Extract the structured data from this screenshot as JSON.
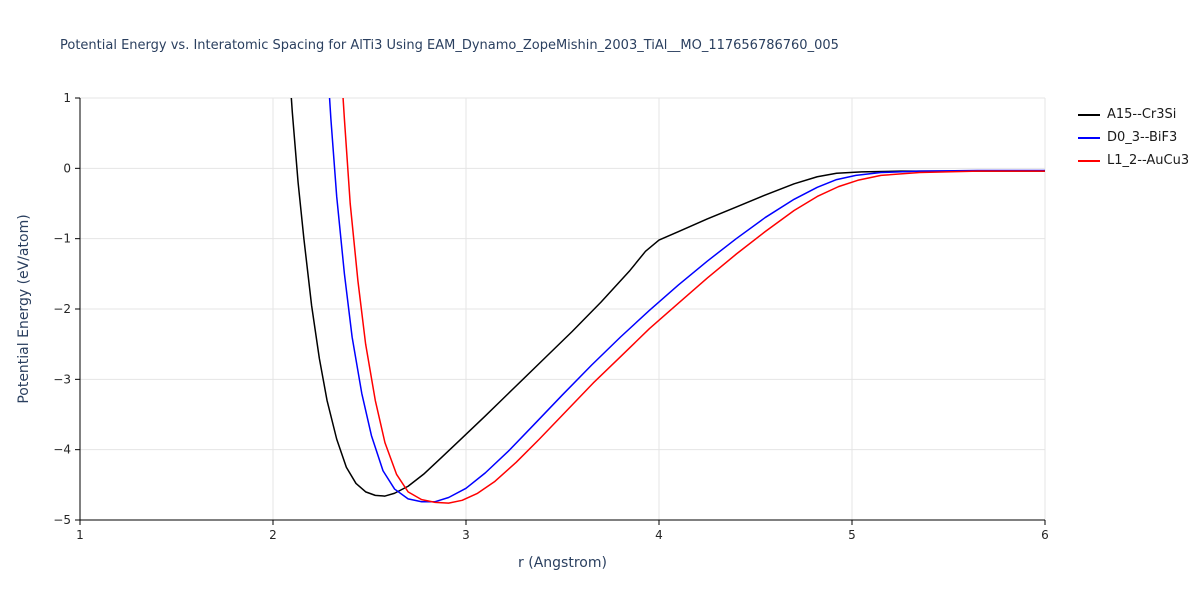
{
  "chart_data": {
    "type": "line",
    "title": "Potential Energy vs. Interatomic Spacing for AlTi3 Using EAM_Dynamo_ZopeMishin_2003_TiAl__MO_117656786760_005",
    "xlabel": "r (Angstrom)",
    "ylabel": "Potential Energy (eV/atom)",
    "xlim": [
      1,
      6
    ],
    "ylim": [
      -5,
      1
    ],
    "xticks": [
      1,
      2,
      3,
      4,
      5,
      6
    ],
    "yticks": [
      -5,
      -4,
      -3,
      -2,
      -1,
      0,
      1
    ],
    "grid": true,
    "legend_position": "top-right-outside",
    "colors": {
      "grid": "#e5e5e5",
      "axis": "#000000",
      "tick_label": "#262626",
      "title": "#2a3f5f"
    },
    "series": [
      {
        "name": "A15--Cr3Si",
        "color": "#000000",
        "points": [
          [
            2.07,
            2.0
          ],
          [
            2.1,
            0.8
          ],
          [
            2.13,
            -0.2
          ],
          [
            2.16,
            -1.0
          ],
          [
            2.2,
            -1.95
          ],
          [
            2.24,
            -2.7
          ],
          [
            2.28,
            -3.3
          ],
          [
            2.33,
            -3.85
          ],
          [
            2.38,
            -4.25
          ],
          [
            2.43,
            -4.48
          ],
          [
            2.48,
            -4.6
          ],
          [
            2.53,
            -4.65
          ],
          [
            2.58,
            -4.66
          ],
          [
            2.63,
            -4.62
          ],
          [
            2.7,
            -4.52
          ],
          [
            2.78,
            -4.35
          ],
          [
            2.87,
            -4.12
          ],
          [
            2.97,
            -3.86
          ],
          [
            3.1,
            -3.52
          ],
          [
            3.25,
            -3.12
          ],
          [
            3.4,
            -2.72
          ],
          [
            3.55,
            -2.32
          ],
          [
            3.7,
            -1.9
          ],
          [
            3.85,
            -1.45
          ],
          [
            3.93,
            -1.18
          ],
          [
            4.0,
            -1.02
          ],
          [
            4.1,
            -0.9
          ],
          [
            4.25,
            -0.72
          ],
          [
            4.4,
            -0.55
          ],
          [
            4.55,
            -0.38
          ],
          [
            4.7,
            -0.22
          ],
          [
            4.82,
            -0.12
          ],
          [
            4.92,
            -0.07
          ],
          [
            5.05,
            -0.05
          ],
          [
            5.25,
            -0.04
          ],
          [
            5.55,
            -0.04
          ],
          [
            6.0,
            -0.04
          ]
        ]
      },
      {
        "name": "D0_3--BiF3",
        "color": "#0000ff",
        "points": [
          [
            2.27,
            2.0
          ],
          [
            2.3,
            0.7
          ],
          [
            2.33,
            -0.4
          ],
          [
            2.37,
            -1.5
          ],
          [
            2.41,
            -2.4
          ],
          [
            2.46,
            -3.2
          ],
          [
            2.51,
            -3.8
          ],
          [
            2.57,
            -4.3
          ],
          [
            2.63,
            -4.56
          ],
          [
            2.7,
            -4.7
          ],
          [
            2.77,
            -4.74
          ],
          [
            2.84,
            -4.74
          ],
          [
            2.91,
            -4.68
          ],
          [
            3.0,
            -4.55
          ],
          [
            3.1,
            -4.33
          ],
          [
            3.22,
            -4.02
          ],
          [
            3.35,
            -3.65
          ],
          [
            3.5,
            -3.22
          ],
          [
            3.65,
            -2.8
          ],
          [
            3.8,
            -2.4
          ],
          [
            3.95,
            -2.02
          ],
          [
            4.1,
            -1.66
          ],
          [
            4.25,
            -1.32
          ],
          [
            4.4,
            -1.0
          ],
          [
            4.55,
            -0.7
          ],
          [
            4.7,
            -0.44
          ],
          [
            4.82,
            -0.27
          ],
          [
            4.92,
            -0.16
          ],
          [
            5.02,
            -0.1
          ],
          [
            5.15,
            -0.06
          ],
          [
            5.35,
            -0.04
          ],
          [
            5.65,
            -0.03
          ],
          [
            6.0,
            -0.03
          ]
        ]
      },
      {
        "name": "L1_2--AuCu3",
        "color": "#ff0000",
        "points": [
          [
            2.34,
            2.0
          ],
          [
            2.37,
            0.7
          ],
          [
            2.4,
            -0.5
          ],
          [
            2.44,
            -1.6
          ],
          [
            2.48,
            -2.5
          ],
          [
            2.53,
            -3.3
          ],
          [
            2.58,
            -3.9
          ],
          [
            2.64,
            -4.35
          ],
          [
            2.7,
            -4.6
          ],
          [
            2.77,
            -4.71
          ],
          [
            2.84,
            -4.75
          ],
          [
            2.91,
            -4.76
          ],
          [
            2.98,
            -4.72
          ],
          [
            3.06,
            -4.62
          ],
          [
            3.15,
            -4.45
          ],
          [
            3.26,
            -4.18
          ],
          [
            3.38,
            -3.85
          ],
          [
            3.52,
            -3.45
          ],
          [
            3.66,
            -3.05
          ],
          [
            3.8,
            -2.68
          ],
          [
            3.95,
            -2.28
          ],
          [
            4.1,
            -1.92
          ],
          [
            4.25,
            -1.56
          ],
          [
            4.4,
            -1.22
          ],
          [
            4.55,
            -0.9
          ],
          [
            4.7,
            -0.6
          ],
          [
            4.82,
            -0.4
          ],
          [
            4.93,
            -0.26
          ],
          [
            5.03,
            -0.17
          ],
          [
            5.15,
            -0.1
          ],
          [
            5.35,
            -0.06
          ],
          [
            5.65,
            -0.04
          ],
          [
            6.0,
            -0.04
          ]
        ]
      }
    ]
  }
}
